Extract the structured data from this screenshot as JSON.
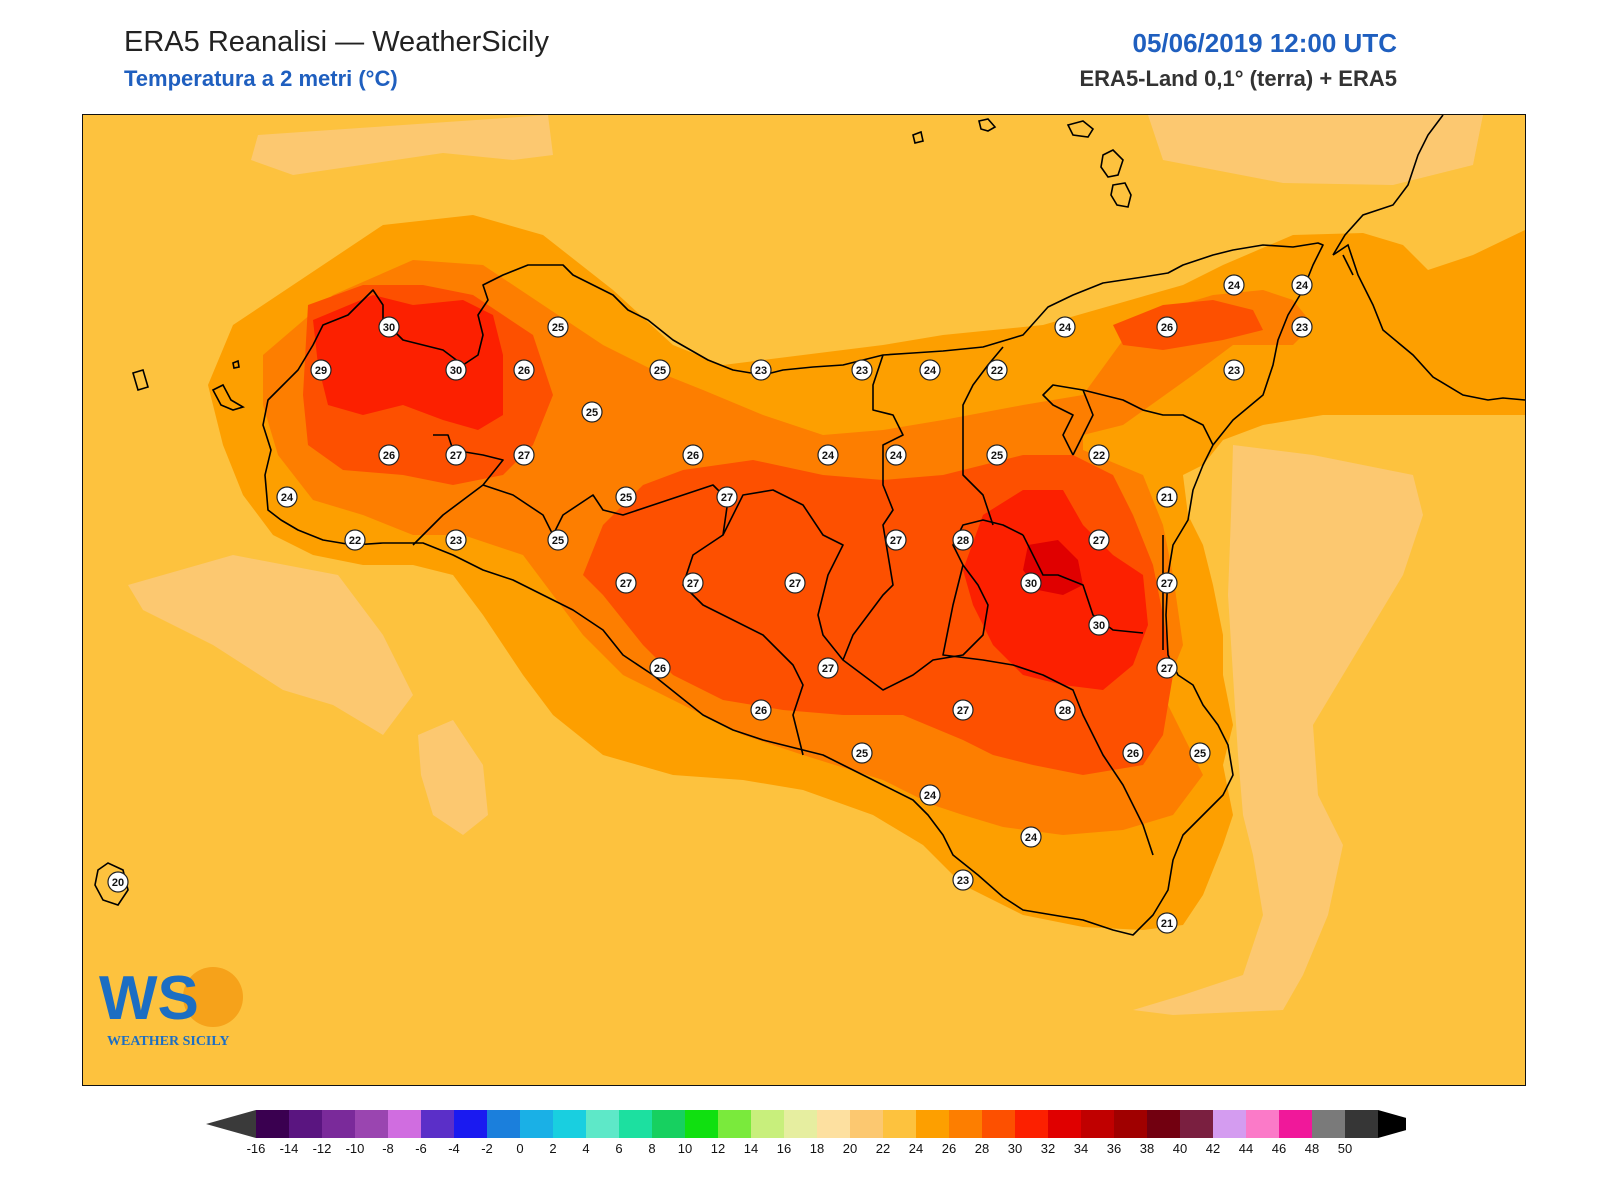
{
  "header": {
    "title": "ERA5 Reanalisi — WeatherSicily",
    "subtitle": "Temperatura a 2 metri (°C)",
    "datetime": "05/06/2019 12:00 UTC",
    "source": "ERA5-Land 0,1° (terra) + ERA5"
  },
  "logo": {
    "mark": "WS",
    "text": "WEATHER SICILY"
  },
  "colors": {
    "sea_default": "#fdc23e",
    "land_outline": "#000000",
    "accent": "#1f5fbf"
  },
  "stations": [
    {
      "v": "30"
    },
    {
      "v": "29"
    },
    {
      "v": "30"
    },
    {
      "v": "26"
    },
    {
      "v": "26"
    },
    {
      "v": "27"
    },
    {
      "v": "27"
    },
    {
      "v": "24"
    },
    {
      "v": "22"
    },
    {
      "v": "23"
    },
    {
      "v": "25"
    },
    {
      "v": "25"
    },
    {
      "v": "25"
    },
    {
      "v": "25"
    },
    {
      "v": "26"
    },
    {
      "v": "27"
    },
    {
      "v": "25"
    },
    {
      "v": "23"
    },
    {
      "v": "23"
    },
    {
      "v": "24"
    },
    {
      "v": "22"
    },
    {
      "v": "24"
    },
    {
      "v": "24"
    },
    {
      "v": "25"
    },
    {
      "v": "27"
    },
    {
      "v": "28"
    },
    {
      "v": "27"
    },
    {
      "v": "27"
    },
    {
      "v": "27"
    },
    {
      "v": "27"
    },
    {
      "v": "26"
    },
    {
      "v": "26"
    },
    {
      "v": "27"
    },
    {
      "v": "25"
    },
    {
      "v": "24"
    },
    {
      "v": "27"
    },
    {
      "v": "30"
    },
    {
      "v": "30"
    },
    {
      "v": "28"
    },
    {
      "v": "26"
    },
    {
      "v": "24"
    },
    {
      "v": "23"
    },
    {
      "v": "24"
    },
    {
      "v": "25"
    },
    {
      "v": "21"
    },
    {
      "v": "22"
    },
    {
      "v": "21"
    },
    {
      "v": "27"
    },
    {
      "v": "27"
    },
    {
      "v": "25"
    },
    {
      "v": "23"
    },
    {
      "v": "23"
    },
    {
      "v": "24"
    },
    {
      "v": "24"
    },
    {
      "v": "26"
    },
    {
      "v": "20"
    }
  ],
  "colorbar": {
    "ticks": [
      "-16",
      "-14",
      "-12",
      "-10",
      "-8",
      "-6",
      "-4",
      "-2",
      "0",
      "2",
      "4",
      "6",
      "8",
      "10",
      "12",
      "14",
      "16",
      "18",
      "20",
      "22",
      "24",
      "26",
      "28",
      "30",
      "32",
      "34",
      "36",
      "38",
      "40",
      "42",
      "44",
      "46",
      "48",
      "50"
    ],
    "colors": [
      "#3a0050",
      "#5a1580",
      "#7a2a9a",
      "#9a45b0",
      "#d06de0",
      "#5b2fc8",
      "#1a1af0",
      "#1b7fdc",
      "#1ab0e6",
      "#19cfe0",
      "#5ee8c8",
      "#1ce0a0",
      "#17d060",
      "#10e010",
      "#7aea3c",
      "#c8ef7c",
      "#e6eea0",
      "#fde0a0",
      "#fcc870",
      "#fdc23e",
      "#fd9f00",
      "#fd7e00",
      "#fd5000",
      "#fc2000",
      "#e00000",
      "#c00000",
      "#a00000",
      "#720010",
      "#7a1f40",
      "#d49cf0",
      "#fb7ac8",
      "#f0189a",
      "#7a7a7a",
      "#363636"
    ]
  }
}
